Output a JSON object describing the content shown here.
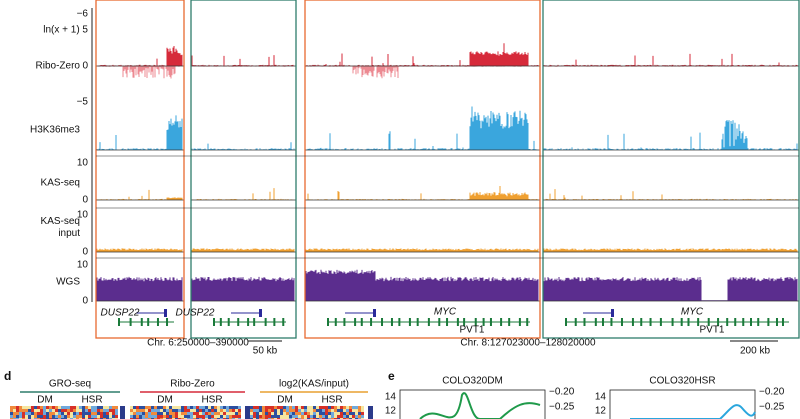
{
  "tracks": [
    {
      "label": "Ribo-Zero",
      "ticks": [
        "−6",
        "ln(x + 1) 5",
        "0",
        "−5"
      ]
    },
    {
      "label": "H3K36me3",
      "ticks": []
    },
    {
      "label": "KAS-seq",
      "ticks": [
        "10",
        "0"
      ]
    },
    {
      "label": "KAS-seq\ninput",
      "ticks": [
        "10",
        "0"
      ]
    },
    {
      "label": "WGS",
      "ticks": [
        "10",
        "0"
      ]
    }
  ],
  "genes": {
    "left": [
      "DUSP22",
      "DUSP22"
    ],
    "right": [
      "MYC",
      "MYC"
    ],
    "pvt": [
      "PVT1",
      "PVT1"
    ]
  },
  "coords": {
    "chr6": "Chr. 6:250000–390000",
    "scale6": "50 kb",
    "chr8": "Chr. 8:127023000–128020000",
    "scale8": "200 kb"
  },
  "panel_d": {
    "letter": "d",
    "groups": [
      "GRO-seq",
      "Ribo-Zero",
      "log2(KAS/input)"
    ],
    "sub": [
      "DM",
      "HSR"
    ]
  },
  "panel_e": {
    "letter": "e",
    "titles": [
      "COLO320DM",
      "COLO320HSR"
    ],
    "left_ticks": [
      "14",
      "12"
    ],
    "right_ticks": [
      "−0.20",
      "−0.25"
    ]
  }
}
